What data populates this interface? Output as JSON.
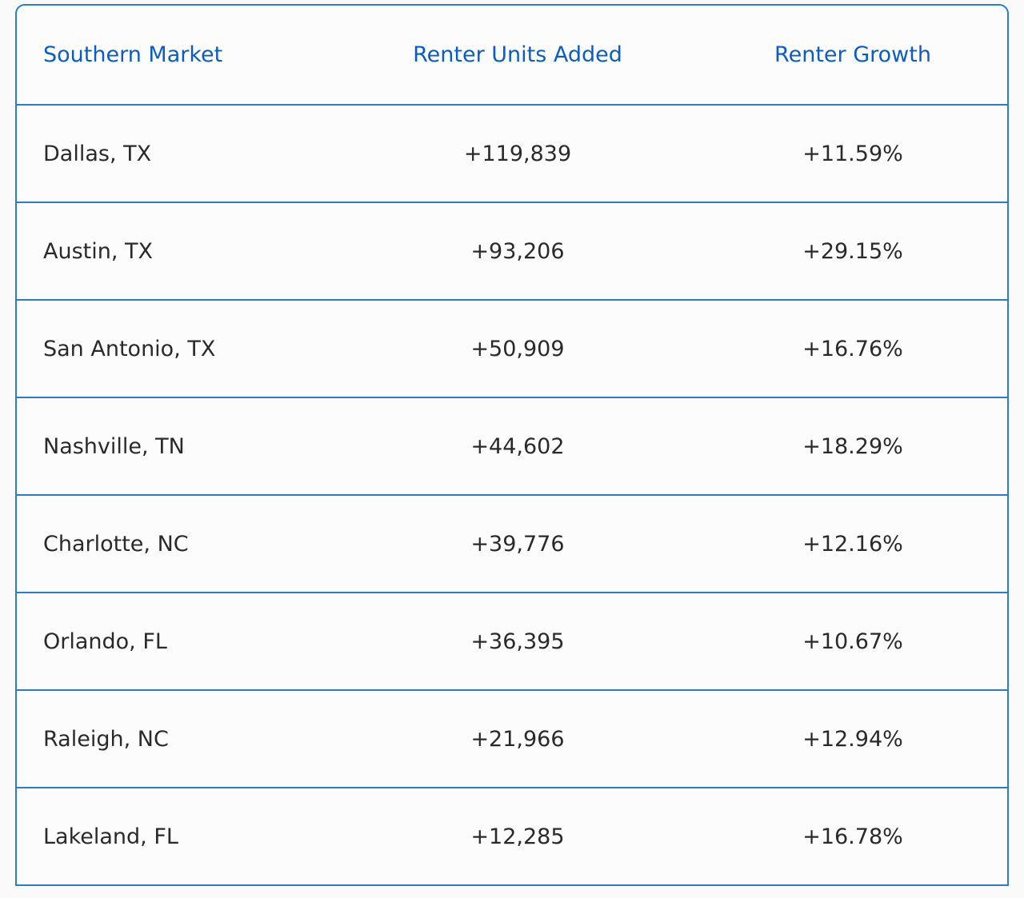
{
  "table": {
    "header": [
      "Southern Market",
      "Renter Units Added",
      "Renter Growth"
    ],
    "rows": [
      [
        "Dallas, TX",
        "+119,839",
        "+11.59%"
      ],
      [
        "Austin, TX",
        "+93,206",
        "+29.15%"
      ],
      [
        "San Antonio, TX",
        "+50,909",
        "+16.76%"
      ],
      [
        "Nashville, TN",
        "+44,602",
        "+18.29%"
      ],
      [
        "Charlotte, NC",
        "+39,776",
        "+12.16%"
      ],
      [
        "Orlando, FL",
        "+36,395",
        "+10.67%"
      ],
      [
        "Raleigh, NC",
        "+21,966",
        "+12.94%"
      ],
      [
        "Lakeland, FL",
        "+12,285",
        "+16.78%"
      ]
    ]
  }
}
